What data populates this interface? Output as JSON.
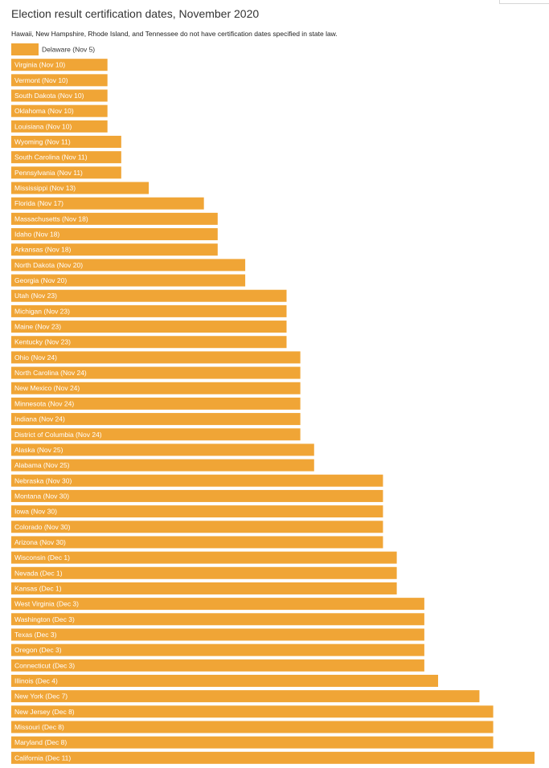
{
  "chart_data": {
    "type": "bar",
    "orientation": "horizontal",
    "title": "Election result certification dates, November 2020",
    "subtitle": "Hawaii, New Hampshire, Rhode Island, and Tennessee do not have certification dates specified in state law.",
    "bar_color": "#F0A536",
    "label_color_inside": "#ffffff",
    "label_color_outside": "#333333",
    "categories": [
      "Delaware (Nov 5)",
      "Virginia (Nov 10)",
      "Vermont (Nov 10)",
      "South Dakota (Nov 10)",
      "Oklahoma (Nov 10)",
      "Louisiana (Nov 10)",
      "Wyoming (Nov 11)",
      "South Carolina (Nov 11)",
      "Pennsylvania (Nov 11)",
      "Mississippi (Nov 13)",
      "Florida (Nov 17)",
      "Massachusetts (Nov 18)",
      "Idaho (Nov 18)",
      "Arkansas (Nov 18)",
      "North Dakota (Nov 20)",
      "Georgia (Nov 20)",
      "Utah (Nov 23)",
      "Michigan (Nov 23)",
      "Maine (Nov 23)",
      "Kentucky (Nov 23)",
      "Ohio (Nov 24)",
      "North Carolina (Nov 24)",
      "New Mexico (Nov 24)",
      "Minnesota (Nov 24)",
      "Indiana (Nov 24)",
      "District of Columbia (Nov 24)",
      "Alaska (Nov 25)",
      "Alabama (Nov 25)",
      "Nebraska (Nov 30)",
      "Montana (Nov 30)",
      "Iowa (Nov 30)",
      "Colorado (Nov 30)",
      "Arizona (Nov 30)",
      "Wisconsin (Dec 1)",
      "Nevada (Dec 1)",
      "Kansas (Dec 1)",
      "West Virginia (Dec 3)",
      "Washington (Dec 3)",
      "Texas (Dec 3)",
      "Oregon (Dec 3)",
      "Connecticut (Dec 3)",
      "Illinois (Dec 4)",
      "New York (Dec 7)",
      "New Jersey (Dec 8)",
      "Missouri (Dec 8)",
      "Maryland (Dec 8)",
      "California (Dec 11)"
    ],
    "values": [
      "2020-11-05",
      "2020-11-10",
      "2020-11-10",
      "2020-11-10",
      "2020-11-10",
      "2020-11-10",
      "2020-11-11",
      "2020-11-11",
      "2020-11-11",
      "2020-11-13",
      "2020-11-17",
      "2020-11-18",
      "2020-11-18",
      "2020-11-18",
      "2020-11-20",
      "2020-11-20",
      "2020-11-23",
      "2020-11-23",
      "2020-11-23",
      "2020-11-23",
      "2020-11-24",
      "2020-11-24",
      "2020-11-24",
      "2020-11-24",
      "2020-11-24",
      "2020-11-24",
      "2020-11-25",
      "2020-11-25",
      "2020-11-30",
      "2020-11-30",
      "2020-11-30",
      "2020-11-30",
      "2020-11-30",
      "2020-12-01",
      "2020-12-01",
      "2020-12-01",
      "2020-12-03",
      "2020-12-03",
      "2020-12-03",
      "2020-12-03",
      "2020-12-03",
      "2020-12-04",
      "2020-12-07",
      "2020-12-08",
      "2020-12-08",
      "2020-12-08",
      "2020-12-11"
    ],
    "grid": false,
    "legend": "none"
  }
}
